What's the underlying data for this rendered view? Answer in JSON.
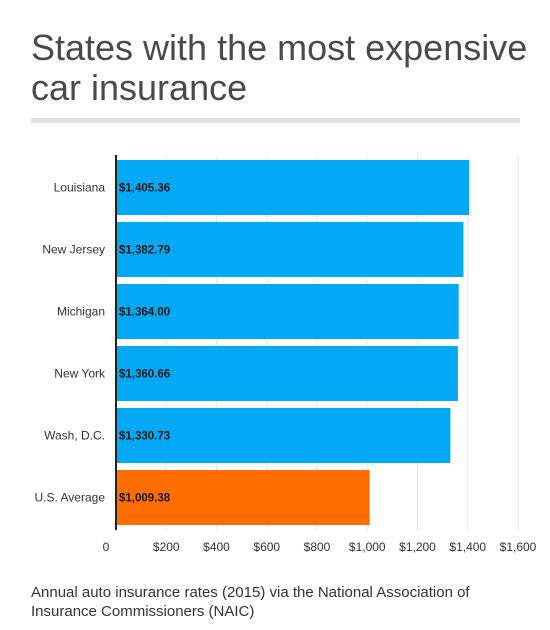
{
  "title": "States with the most expensive car insurance",
  "caption": "Annual auto insurance rates (2015) via the National Association of Insurance Commissioners (NAIC)",
  "chart_data": {
    "type": "bar",
    "orientation": "horizontal",
    "categories": [
      "Louisiana",
      "New Jersey",
      "Michigan",
      "New York",
      "Wash, D.C.",
      "U.S. Average"
    ],
    "values": [
      1405.36,
      1382.79,
      1364.0,
      1360.66,
      1330.73,
      1009.38
    ],
    "value_labels": [
      "$1,405.36",
      "$1,382.79",
      "$1,364.00",
      "$1,360.66",
      "$1,330.73",
      "$1,009.38"
    ],
    "colors": [
      "#03a9f4",
      "#03a9f4",
      "#03a9f4",
      "#03a9f4",
      "#03a9f4",
      "#ff6d00"
    ],
    "xticks": [
      0,
      200,
      400,
      600,
      800,
      1000,
      1200,
      1400,
      1600
    ],
    "xtick_labels": [
      "0",
      "$200",
      "$400",
      "$600",
      "$800",
      "$1,000",
      "$1,200",
      "$1,400",
      "$1,600"
    ],
    "xlim": [
      0,
      1600
    ],
    "grid": "vertical",
    "legend": "none"
  }
}
